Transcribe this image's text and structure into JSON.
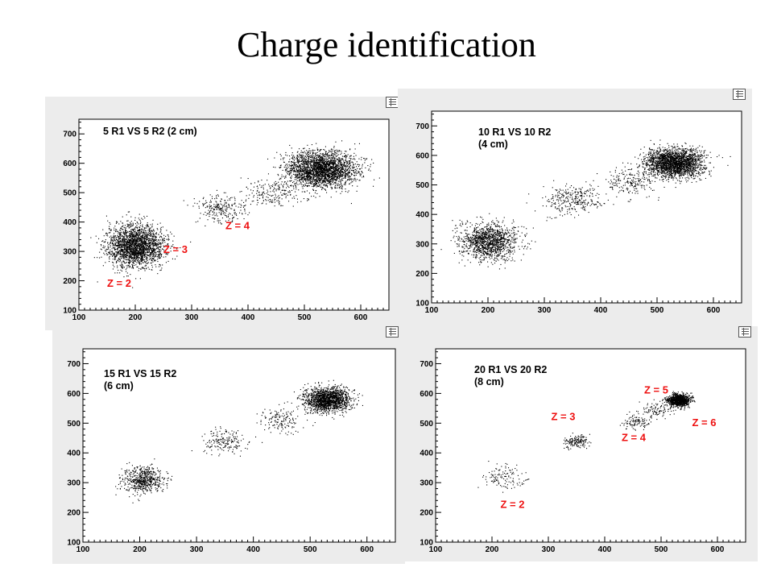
{
  "title": "Charge identification",
  "colors": {
    "panel_background": "#ececec",
    "points": "#000000",
    "annotation": "#ee1111"
  },
  "chart_data": [
    {
      "type": "scatter",
      "label": [
        "5 R1 VS 5 R2 (2 cm)"
      ],
      "xlim": [
        100,
        650
      ],
      "ylim": [
        100,
        750
      ],
      "xticks": [
        100,
        200,
        300,
        400,
        500,
        600
      ],
      "yticks": [
        100,
        200,
        300,
        400,
        500,
        600,
        700
      ],
      "clusters": [
        {
          "x": 200,
          "y": 320,
          "sx": 25,
          "sy": 35,
          "n": 2200
        },
        {
          "x": 350,
          "y": 445,
          "sx": 22,
          "sy": 25,
          "n": 250
        },
        {
          "x": 440,
          "y": 500,
          "sx": 25,
          "sy": 25,
          "n": 200
        },
        {
          "x": 530,
          "y": 580,
          "sx": 30,
          "sy": 30,
          "n": 2500
        }
      ],
      "annotations": [
        {
          "text": "Z = 2",
          "x": 150,
          "y": 180
        },
        {
          "text": "Z = 3",
          "x": 250,
          "y": 295
        },
        {
          "text": "Z = 4",
          "x": 360,
          "y": 375
        }
      ]
    },
    {
      "type": "scatter",
      "label": [
        "10 R1 VS 10 R2",
        "(4 cm)"
      ],
      "xlim": [
        100,
        650
      ],
      "ylim": [
        100,
        750
      ],
      "xticks": [
        100,
        200,
        300,
        400,
        500,
        600
      ],
      "yticks": [
        100,
        200,
        300,
        400,
        500,
        600,
        700
      ],
      "clusters": [
        {
          "x": 200,
          "y": 310,
          "sx": 25,
          "sy": 30,
          "n": 1300
        },
        {
          "x": 350,
          "y": 450,
          "sx": 25,
          "sy": 25,
          "n": 300
        },
        {
          "x": 450,
          "y": 510,
          "sx": 25,
          "sy": 25,
          "n": 200
        },
        {
          "x": 530,
          "y": 575,
          "sx": 25,
          "sy": 25,
          "n": 2200
        }
      ],
      "annotations": []
    },
    {
      "type": "scatter",
      "label": [
        "15 R1 VS 15 R2",
        "(6 cm)"
      ],
      "xlim": [
        100,
        650
      ],
      "ylim": [
        100,
        750
      ],
      "xticks": [
        100,
        200,
        300,
        400,
        500,
        600
      ],
      "yticks": [
        100,
        200,
        300,
        400,
        500,
        600,
        700
      ],
      "clusters": [
        {
          "x": 205,
          "y": 310,
          "sx": 18,
          "sy": 22,
          "n": 600
        },
        {
          "x": 350,
          "y": 440,
          "sx": 18,
          "sy": 18,
          "n": 180
        },
        {
          "x": 450,
          "y": 510,
          "sx": 20,
          "sy": 20,
          "n": 150
        },
        {
          "x": 530,
          "y": 580,
          "sx": 20,
          "sy": 20,
          "n": 1600
        }
      ],
      "annotations": []
    },
    {
      "type": "scatter",
      "label": [
        "20 R1 VS 20 R2",
        "(8 cm)"
      ],
      "xlim": [
        100,
        650
      ],
      "ylim": [
        100,
        750
      ],
      "xticks": [
        100,
        200,
        300,
        400,
        500,
        600
      ],
      "yticks": [
        100,
        200,
        300,
        400,
        500,
        600,
        700
      ],
      "clusters": [
        {
          "x": 220,
          "y": 320,
          "sx": 20,
          "sy": 20,
          "n": 120
        },
        {
          "x": 350,
          "y": 440,
          "sx": 12,
          "sy": 12,
          "n": 150
        },
        {
          "x": 455,
          "y": 505,
          "sx": 12,
          "sy": 12,
          "n": 100
        },
        {
          "x": 490,
          "y": 545,
          "sx": 12,
          "sy": 12,
          "n": 100
        },
        {
          "x": 530,
          "y": 578,
          "sx": 10,
          "sy": 10,
          "n": 1000
        }
      ],
      "annotations": [
        {
          "text": "Z = 5",
          "x": 470,
          "y": 600
        },
        {
          "text": "Z = 3",
          "x": 305,
          "y": 510
        },
        {
          "text": "Z = 6",
          "x": 555,
          "y": 490
        },
        {
          "text": "Z = 4",
          "x": 430,
          "y": 440
        },
        {
          "text": "Z = 2",
          "x": 215,
          "y": 215
        }
      ]
    }
  ]
}
